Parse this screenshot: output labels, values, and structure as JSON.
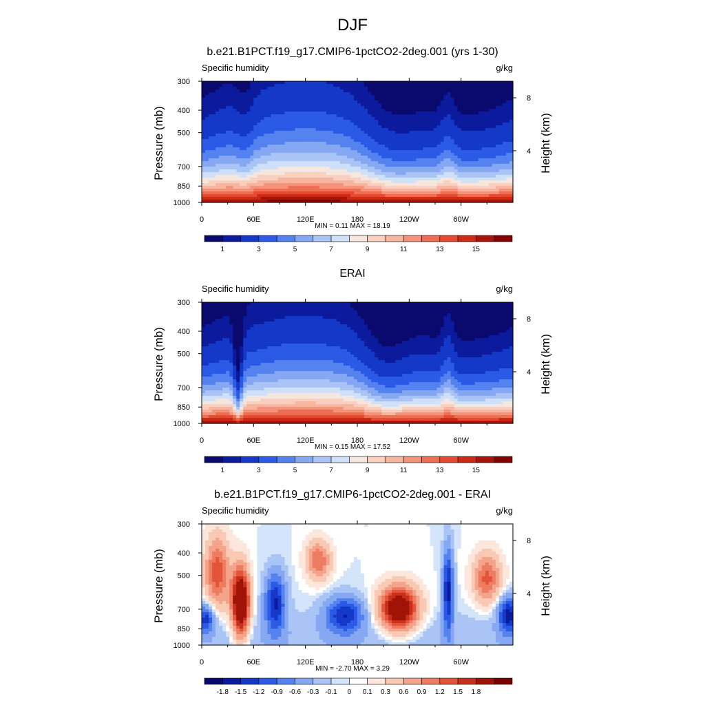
{
  "page_title": "DJF",
  "x_ticks": [
    "0",
    "60E",
    "120E",
    "180",
    "120W",
    "60W"
  ],
  "p_ticks": [
    "300",
    "400",
    "500",
    "700",
    "850",
    "1000"
  ],
  "p_values": [
    300,
    400,
    500,
    700,
    850,
    1000
  ],
  "h_ticks": [
    "8",
    "4"
  ],
  "ylabel": "Pressure (mb)",
  "ylabel2": "Height (km)",
  "colors": {
    "blue_red_20": [
      "#0a0a6e",
      "#0c1a9e",
      "#1438c8",
      "#2a5ae6",
      "#5482ee",
      "#86a8f2",
      "#aac4f6",
      "#cfe0f9",
      "#f5e6de",
      "#f9cfc0",
      "#f7b49e",
      "#f3937a",
      "#ee6e52",
      "#e64a30",
      "#cc2a14",
      "#a8140a",
      "#840000"
    ],
    "diff": [
      "#0a0a6e",
      "#0c1a9e",
      "#1438c8",
      "#2a5ae6",
      "#5482ee",
      "#86a8f2",
      "#aac4f6",
      "#d4e4fa",
      "#ffffff",
      "#fde6dc",
      "#f9c9b4",
      "#f4a48a",
      "#ee7c60",
      "#e4543a",
      "#c8301c",
      "#a01408",
      "#780000"
    ],
    "terrain": "#000000"
  },
  "chart_data": [
    {
      "type": "heatmap",
      "title": "b.e21.B1PCT.f19_g17.CMIP6-1pctCO2-2deg.001 (yrs 1-30)",
      "left_label": "Specific humidity",
      "right_label": "g/kg",
      "variable": "Specific humidity",
      "units": "g/kg",
      "min_max": "MIN =   0.11  MAX =  18.19",
      "xlim": [
        0,
        360
      ],
      "ylim": [
        1000,
        300
      ],
      "colorbar_levels": [
        0.5,
        1,
        2,
        3,
        4,
        5,
        6,
        7,
        8,
        9,
        10,
        11,
        12,
        13,
        14,
        15
      ],
      "colorbar_labels": [
        "1",
        "3",
        "5",
        "7",
        "9",
        "11",
        "13",
        "15"
      ],
      "grid": false
    },
    {
      "type": "heatmap",
      "title": "ERAI",
      "left_label": "Specific humidity",
      "right_label": "g/kg",
      "variable": "Specific humidity",
      "units": "g/kg",
      "min_max": "MIN =   0.15  MAX =  17.52",
      "xlim": [
        0,
        360
      ],
      "ylim": [
        1000,
        300
      ],
      "colorbar_levels": [
        0.5,
        1,
        2,
        3,
        4,
        5,
        6,
        7,
        8,
        9,
        10,
        11,
        12,
        13,
        14,
        15
      ],
      "colorbar_labels": [
        "1",
        "3",
        "5",
        "7",
        "9",
        "11",
        "13",
        "15"
      ],
      "grid": false
    },
    {
      "type": "heatmap",
      "title": "b.e21.B1PCT.f19_g17.CMIP6-1pctCO2-2deg.001 - ERAI",
      "left_label": "Specific humidity",
      "right_label": "g/kg",
      "variable": "Specific humidity",
      "units": "g/kg",
      "min_max": "MIN =  -2.70  MAX =   3.29",
      "xlim": [
        0,
        360
      ],
      "ylim": [
        1000,
        300
      ],
      "colorbar_levels": [
        -1.8,
        -1.5,
        -1.2,
        -0.9,
        -0.6,
        -0.3,
        -0.1,
        0,
        0.1,
        0.3,
        0.6,
        0.9,
        1.2,
        1.5,
        1.8
      ],
      "colorbar_labels": [
        "-1.8",
        "-1.5",
        "-1.2",
        "-0.9",
        "-0.6",
        "-0.3",
        "-0.1",
        "0",
        "0.1",
        "0.3",
        "0.6",
        "0.9",
        "1.2",
        "1.5",
        "1.8"
      ],
      "grid": false
    }
  ]
}
